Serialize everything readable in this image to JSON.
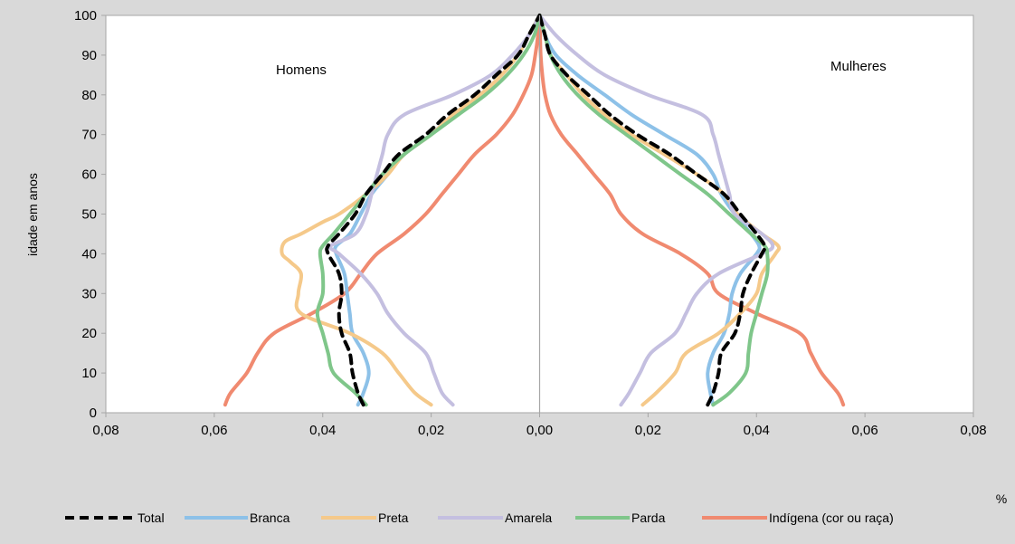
{
  "chart_data": {
    "type": "line",
    "title": "",
    "xlabel": "%",
    "ylabel": "idade em anos",
    "xlim": [
      -0.08,
      0.08
    ],
    "ylim": [
      0,
      100
    ],
    "x_ticks": [
      -0.08,
      -0.06,
      -0.04,
      -0.02,
      0,
      0.02,
      0.04,
      0.06,
      0.08
    ],
    "x_tick_labels": [
      "0,08",
      "0,06",
      "0,04",
      "0,02",
      "0,00",
      "0,02",
      "0,04",
      "0,06",
      "0,08"
    ],
    "y_ticks": [
      0,
      10,
      20,
      30,
      40,
      50,
      60,
      70,
      80,
      90,
      100
    ],
    "y_tick_labels": [
      "0",
      "10",
      "20",
      "30",
      "40",
      "50",
      "60",
      "70",
      "80",
      "90",
      "100"
    ],
    "grid": false,
    "legend_position": "bottom",
    "annotations": {
      "left": "Homens",
      "right": "Mulheres"
    },
    "series": [
      {
        "name": "Total",
        "color": "#000000",
        "dashed": true,
        "men": [
          [
            2,
            0.0325
          ],
          [
            5,
            0.0335
          ],
          [
            10,
            0.0345
          ],
          [
            15,
            0.035
          ],
          [
            20,
            0.0365
          ],
          [
            25,
            0.037
          ],
          [
            30,
            0.0365
          ],
          [
            35,
            0.037
          ],
          [
            40,
            0.039
          ],
          [
            42,
            0.039
          ],
          [
            45,
            0.037
          ],
          [
            50,
            0.034
          ],
          [
            55,
            0.032
          ],
          [
            60,
            0.029
          ],
          [
            65,
            0.026
          ],
          [
            70,
            0.021
          ],
          [
            75,
            0.017
          ],
          [
            80,
            0.012
          ],
          [
            85,
            0.008
          ],
          [
            90,
            0.004
          ],
          [
            95,
            0.002
          ],
          [
            100,
            0
          ]
        ],
        "women": [
          [
            2,
            0.031
          ],
          [
            5,
            0.032
          ],
          [
            10,
            0.033
          ],
          [
            15,
            0.0335
          ],
          [
            20,
            0.036
          ],
          [
            25,
            0.037
          ],
          [
            30,
            0.0375
          ],
          [
            35,
            0.039
          ],
          [
            40,
            0.041
          ],
          [
            42,
            0.0415
          ],
          [
            45,
            0.04
          ],
          [
            50,
            0.037
          ],
          [
            55,
            0.034
          ],
          [
            60,
            0.029
          ],
          [
            65,
            0.024
          ],
          [
            70,
            0.018
          ],
          [
            75,
            0.013
          ],
          [
            80,
            0.009
          ],
          [
            85,
            0.005
          ],
          [
            90,
            0.002
          ],
          [
            95,
            0.001
          ],
          [
            100,
            0
          ]
        ]
      },
      {
        "name": "Branca",
        "color": "#8dc1e8",
        "dashed": false,
        "men": [
          [
            2,
            0.0335
          ],
          [
            5,
            0.0325
          ],
          [
            10,
            0.0315
          ],
          [
            15,
            0.0325
          ],
          [
            20,
            0.0345
          ],
          [
            25,
            0.035
          ],
          [
            30,
            0.0355
          ],
          [
            35,
            0.036
          ],
          [
            40,
            0.0375
          ],
          [
            42,
            0.0375
          ],
          [
            45,
            0.035
          ],
          [
            50,
            0.033
          ],
          [
            55,
            0.031
          ],
          [
            60,
            0.028
          ],
          [
            65,
            0.025
          ],
          [
            70,
            0.02
          ],
          [
            75,
            0.016
          ],
          [
            80,
            0.011
          ],
          [
            85,
            0.007
          ],
          [
            90,
            0.004
          ],
          [
            95,
            0.002
          ],
          [
            100,
            0
          ]
        ],
        "women": [
          [
            2,
            0.032
          ],
          [
            5,
            0.0315
          ],
          [
            10,
            0.031
          ],
          [
            15,
            0.032
          ],
          [
            20,
            0.034
          ],
          [
            25,
            0.035
          ],
          [
            30,
            0.0355
          ],
          [
            35,
            0.037
          ],
          [
            40,
            0.04
          ],
          [
            42,
            0.0405
          ],
          [
            45,
            0.039
          ],
          [
            50,
            0.036
          ],
          [
            55,
            0.0335
          ],
          [
            60,
            0.032
          ],
          [
            65,
            0.029
          ],
          [
            70,
            0.023
          ],
          [
            75,
            0.017
          ],
          [
            80,
            0.012
          ],
          [
            85,
            0.007
          ],
          [
            90,
            0.003
          ],
          [
            95,
            0.001
          ],
          [
            100,
            0
          ]
        ]
      },
      {
        "name": "Preta",
        "color": "#f5c98a",
        "dashed": false,
        "men": [
          [
            2,
            0.02
          ],
          [
            5,
            0.023
          ],
          [
            10,
            0.026
          ],
          [
            15,
            0.029
          ],
          [
            20,
            0.035
          ],
          [
            25,
            0.044
          ],
          [
            30,
            0.0445
          ],
          [
            35,
            0.044
          ],
          [
            38,
            0.046
          ],
          [
            40,
            0.0475
          ],
          [
            43,
            0.047
          ],
          [
            45,
            0.044
          ],
          [
            48,
            0.04
          ],
          [
            50,
            0.037
          ],
          [
            55,
            0.032
          ],
          [
            60,
            0.028
          ],
          [
            65,
            0.025
          ],
          [
            70,
            0.02
          ],
          [
            75,
            0.016
          ],
          [
            80,
            0.011
          ],
          [
            85,
            0.007
          ],
          [
            90,
            0.004
          ],
          [
            95,
            0.002
          ],
          [
            100,
            0
          ]
        ],
        "women": [
          [
            2,
            0.019
          ],
          [
            5,
            0.0215
          ],
          [
            10,
            0.025
          ],
          [
            15,
            0.027
          ],
          [
            20,
            0.033
          ],
          [
            25,
            0.037
          ],
          [
            30,
            0.04
          ],
          [
            35,
            0.041
          ],
          [
            40,
            0.0435
          ],
          [
            42,
            0.044
          ],
          [
            45,
            0.041
          ],
          [
            50,
            0.0365
          ],
          [
            55,
            0.034
          ],
          [
            60,
            0.029
          ],
          [
            65,
            0.023
          ],
          [
            70,
            0.017
          ],
          [
            75,
            0.012
          ],
          [
            80,
            0.008
          ],
          [
            85,
            0.005
          ],
          [
            90,
            0.002
          ],
          [
            95,
            0.001
          ],
          [
            100,
            0
          ]
        ]
      },
      {
        "name": "Amarela",
        "color": "#c4bfe0",
        "dashed": false,
        "men": [
          [
            2,
            0.016
          ],
          [
            5,
            0.018
          ],
          [
            10,
            0.0195
          ],
          [
            15,
            0.021
          ],
          [
            20,
            0.025
          ],
          [
            25,
            0.028
          ],
          [
            30,
            0.03
          ],
          [
            35,
            0.033
          ],
          [
            40,
            0.037
          ],
          [
            42,
            0.0385
          ],
          [
            45,
            0.034
          ],
          [
            50,
            0.032
          ],
          [
            55,
            0.031
          ],
          [
            60,
            0.03
          ],
          [
            65,
            0.029
          ],
          [
            70,
            0.028
          ],
          [
            75,
            0.025
          ],
          [
            80,
            0.016
          ],
          [
            85,
            0.009
          ],
          [
            90,
            0.005
          ],
          [
            95,
            0.002
          ],
          [
            100,
            0
          ]
        ],
        "women": [
          [
            2,
            0.015
          ],
          [
            5,
            0.0165
          ],
          [
            10,
            0.0185
          ],
          [
            15,
            0.0205
          ],
          [
            20,
            0.025
          ],
          [
            25,
            0.027
          ],
          [
            30,
            0.029
          ],
          [
            35,
            0.033
          ],
          [
            40,
            0.041
          ],
          [
            42,
            0.043
          ],
          [
            45,
            0.041
          ],
          [
            50,
            0.036
          ],
          [
            55,
            0.035
          ],
          [
            60,
            0.034
          ],
          [
            65,
            0.033
          ],
          [
            70,
            0.032
          ],
          [
            75,
            0.03
          ],
          [
            80,
            0.02
          ],
          [
            85,
            0.012
          ],
          [
            90,
            0.007
          ],
          [
            95,
            0.003
          ],
          [
            100,
            0
          ]
        ]
      },
      {
        "name": "Parda",
        "color": "#7fc68a",
        "dashed": false,
        "men": [
          [
            2,
            0.032
          ],
          [
            5,
            0.034
          ],
          [
            10,
            0.038
          ],
          [
            15,
            0.039
          ],
          [
            20,
            0.04
          ],
          [
            25,
            0.041
          ],
          [
            30,
            0.04
          ],
          [
            35,
            0.04
          ],
          [
            40,
            0.0405
          ],
          [
            42,
            0.04
          ],
          [
            45,
            0.038
          ],
          [
            50,
            0.035
          ],
          [
            55,
            0.032
          ],
          [
            60,
            0.029
          ],
          [
            65,
            0.025
          ],
          [
            70,
            0.02
          ],
          [
            75,
            0.015
          ],
          [
            80,
            0.01
          ],
          [
            85,
            0.006
          ],
          [
            90,
            0.003
          ],
          [
            95,
            0.001
          ],
          [
            100,
            0
          ]
        ],
        "women": [
          [
            2,
            0.032
          ],
          [
            5,
            0.035
          ],
          [
            10,
            0.038
          ],
          [
            15,
            0.0385
          ],
          [
            20,
            0.039
          ],
          [
            25,
            0.04
          ],
          [
            30,
            0.041
          ],
          [
            35,
            0.042
          ],
          [
            40,
            0.042
          ],
          [
            42,
            0.0415
          ],
          [
            45,
            0.039
          ],
          [
            50,
            0.035
          ],
          [
            55,
            0.031
          ],
          [
            60,
            0.026
          ],
          [
            65,
            0.021
          ],
          [
            70,
            0.016
          ],
          [
            75,
            0.011
          ],
          [
            80,
            0.007
          ],
          [
            85,
            0.004
          ],
          [
            90,
            0.002
          ],
          [
            95,
            0.001
          ],
          [
            100,
            0
          ]
        ]
      },
      {
        "name": "Indígena (cor ou raça)",
        "color": "#f08a70",
        "dashed": false,
        "men": [
          [
            2,
            0.058
          ],
          [
            5,
            0.057
          ],
          [
            10,
            0.054
          ],
          [
            15,
            0.052
          ],
          [
            20,
            0.049
          ],
          [
            25,
            0.042
          ],
          [
            30,
            0.036
          ],
          [
            35,
            0.033
          ],
          [
            40,
            0.03
          ],
          [
            45,
            0.025
          ],
          [
            50,
            0.021
          ],
          [
            55,
            0.018
          ],
          [
            60,
            0.015
          ],
          [
            65,
            0.012
          ],
          [
            70,
            0.008
          ],
          [
            75,
            0.005
          ],
          [
            80,
            0.003
          ],
          [
            85,
            0.0015
          ],
          [
            90,
            0.0008
          ],
          [
            95,
            0.0003
          ],
          [
            100,
            0
          ]
        ],
        "women": [
          [
            2,
            0.056
          ],
          [
            5,
            0.055
          ],
          [
            10,
            0.052
          ],
          [
            15,
            0.05
          ],
          [
            20,
            0.048
          ],
          [
            25,
            0.04
          ],
          [
            30,
            0.033
          ],
          [
            35,
            0.031
          ],
          [
            40,
            0.026
          ],
          [
            45,
            0.019
          ],
          [
            50,
            0.015
          ],
          [
            55,
            0.013
          ],
          [
            60,
            0.01
          ],
          [
            65,
            0.007
          ],
          [
            70,
            0.004
          ],
          [
            75,
            0.002
          ],
          [
            80,
            0.001
          ],
          [
            85,
            0.0005
          ],
          [
            90,
            0.0002
          ],
          [
            95,
            0.0001
          ],
          [
            100,
            0
          ]
        ]
      }
    ]
  }
}
